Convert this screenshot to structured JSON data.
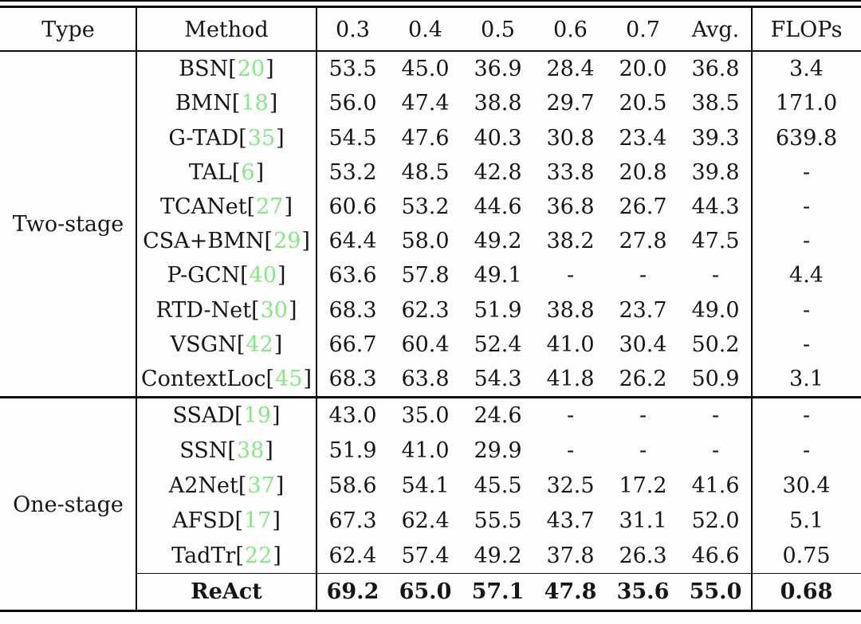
{
  "table": {
    "headers": [
      "Type",
      "Method",
      "0.3",
      "0.4",
      "0.5",
      "0.6",
      "0.7",
      "Avg.",
      "FLOPs"
    ],
    "colors": {
      "citation": "#84e884",
      "text": "#161616",
      "rule": "#0c0c0c"
    },
    "sections": [
      {
        "type": "Two-stage",
        "rows": [
          {
            "method": "BSN",
            "cite": "20",
            "scores": [
              "53.5",
              "45.0",
              "36.9",
              "28.4",
              "20.0",
              "36.8"
            ],
            "flops": "3.4"
          },
          {
            "method": "BMN",
            "cite": "18",
            "scores": [
              "56.0",
              "47.4",
              "38.8",
              "29.7",
              "20.5",
              "38.5"
            ],
            "flops": "171.0"
          },
          {
            "method": "G-TAD",
            "cite": "35",
            "scores": [
              "54.5",
              "47.6",
              "40.3",
              "30.8",
              "23.4",
              "39.3"
            ],
            "flops": "639.8"
          },
          {
            "method": "TAL",
            "cite": "6",
            "scores": [
              "53.2",
              "48.5",
              "42.8",
              "33.8",
              "20.8",
              "39.8"
            ],
            "flops": "-"
          },
          {
            "method": "TCANet",
            "cite": "27",
            "scores": [
              "60.6",
              "53.2",
              "44.6",
              "36.8",
              "26.7",
              "44.3"
            ],
            "flops": "-"
          },
          {
            "method": "CSA+BMN",
            "cite": "29",
            "scores": [
              "64.4",
              "58.0",
              "49.2",
              "38.2",
              "27.8",
              "47.5"
            ],
            "flops": "-"
          },
          {
            "method": "P-GCN",
            "cite": "40",
            "scores": [
              "63.6",
              "57.8",
              "49.1",
              "-",
              "-",
              "-"
            ],
            "flops": "4.4"
          },
          {
            "method": "RTD-Net",
            "cite": "30",
            "scores": [
              "68.3",
              "62.3",
              "51.9",
              "38.8",
              "23.7",
              "49.0"
            ],
            "flops": "-"
          },
          {
            "method": "VSGN",
            "cite": "42",
            "scores": [
              "66.7",
              "60.4",
              "52.4",
              "41.0",
              "30.4",
              "50.2"
            ],
            "flops": "-"
          },
          {
            "method": "ContextLoc",
            "cite": "45",
            "scores": [
              "68.3",
              "63.8",
              "54.3",
              "41.8",
              "26.2",
              "50.9"
            ],
            "flops": "3.1"
          }
        ]
      },
      {
        "type": "One-stage",
        "rows": [
          {
            "method": "SSAD",
            "cite": "19",
            "scores": [
              "43.0",
              "35.0",
              "24.6",
              "-",
              "-",
              "-"
            ],
            "flops": "-"
          },
          {
            "method": "SSN",
            "cite": "38",
            "scores": [
              "51.9",
              "41.0",
              "29.9",
              "-",
              "-",
              "-"
            ],
            "flops": "-"
          },
          {
            "method": "A2Net",
            "cite": "37",
            "scores": [
              "58.6",
              "54.1",
              "45.5",
              "32.5",
              "17.2",
              "41.6"
            ],
            "flops": "30.4"
          },
          {
            "method": "AFSD",
            "cite": "17",
            "scores": [
              "67.3",
              "62.4",
              "55.5",
              "43.7",
              "31.1",
              "52.0"
            ],
            "flops": "5.1"
          },
          {
            "method": "TadTr",
            "cite": "22",
            "scores": [
              "62.4",
              "57.4",
              "49.2",
              "37.8",
              "26.3",
              "46.6"
            ],
            "flops": "0.75"
          },
          {
            "method": "ReAct",
            "cite": null,
            "scores": [
              "69.2",
              "65.0",
              "57.1",
              "47.8",
              "35.6",
              "55.0"
            ],
            "flops": "0.68",
            "bold": true
          }
        ]
      }
    ]
  },
  "chart_data": {
    "type": "table",
    "title": "",
    "columns": [
      "Type",
      "Method",
      "0.3",
      "0.4",
      "0.5",
      "0.6",
      "0.7",
      "Avg.",
      "FLOPs"
    ],
    "rows": [
      [
        "Two-stage",
        "BSN[20]",
        53.5,
        45.0,
        36.9,
        28.4,
        20.0,
        36.8,
        3.4
      ],
      [
        "Two-stage",
        "BMN[18]",
        56.0,
        47.4,
        38.8,
        29.7,
        20.5,
        38.5,
        171.0
      ],
      [
        "Two-stage",
        "G-TAD[35]",
        54.5,
        47.6,
        40.3,
        30.8,
        23.4,
        39.3,
        639.8
      ],
      [
        "Two-stage",
        "TAL[6]",
        53.2,
        48.5,
        42.8,
        33.8,
        20.8,
        39.8,
        null
      ],
      [
        "Two-stage",
        "TCANet[27]",
        60.6,
        53.2,
        44.6,
        36.8,
        26.7,
        44.3,
        null
      ],
      [
        "Two-stage",
        "CSA+BMN[29]",
        64.4,
        58.0,
        49.2,
        38.2,
        27.8,
        47.5,
        null
      ],
      [
        "Two-stage",
        "P-GCN[40]",
        63.6,
        57.8,
        49.1,
        null,
        null,
        null,
        4.4
      ],
      [
        "Two-stage",
        "RTD-Net[30]",
        68.3,
        62.3,
        51.9,
        38.8,
        23.7,
        49.0,
        null
      ],
      [
        "Two-stage",
        "VSGN[42]",
        66.7,
        60.4,
        52.4,
        41.0,
        30.4,
        50.2,
        null
      ],
      [
        "Two-stage",
        "ContextLoc[45]",
        68.3,
        63.8,
        54.3,
        41.8,
        26.2,
        50.9,
        3.1
      ],
      [
        "One-stage",
        "SSAD[19]",
        43.0,
        35.0,
        24.6,
        null,
        null,
        null,
        null
      ],
      [
        "One-stage",
        "SSN[38]",
        51.9,
        41.0,
        29.9,
        null,
        null,
        null,
        null
      ],
      [
        "One-stage",
        "A2Net[37]",
        58.6,
        54.1,
        45.5,
        32.5,
        17.2,
        41.6,
        30.4
      ],
      [
        "One-stage",
        "AFSD[17]",
        67.3,
        62.4,
        55.5,
        43.7,
        31.1,
        52.0,
        5.1
      ],
      [
        "One-stage",
        "TadTr[22]",
        62.4,
        57.4,
        49.2,
        37.8,
        26.3,
        46.6,
        0.75
      ],
      [
        "One-stage",
        "ReAct",
        69.2,
        65.0,
        57.1,
        47.8,
        35.6,
        55.0,
        0.68
      ]
    ]
  }
}
